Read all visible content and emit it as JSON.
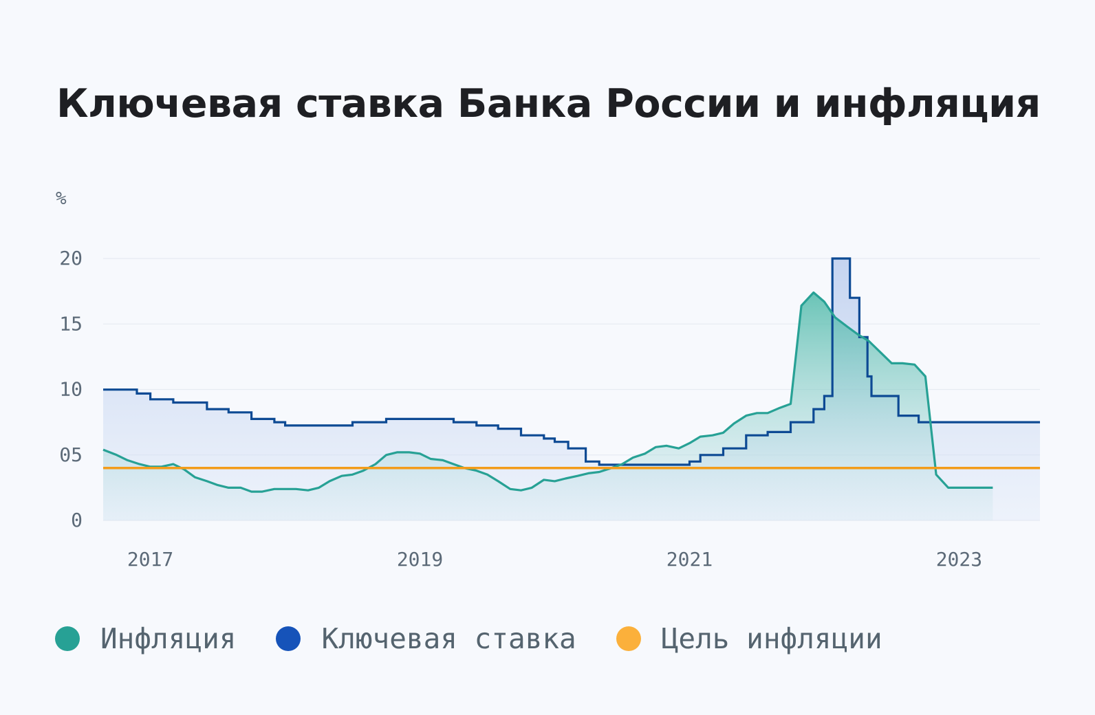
{
  "title": "Ключевая ставка Банка России и инфляция",
  "colors": {
    "inflation": "#27a195",
    "key_rate": "#0d4a94",
    "target": "#f39c1a",
    "legend_inflation": "#27a195",
    "legend_key_rate": "#1653b9",
    "legend_target": "#fbb03b"
  },
  "legend": [
    {
      "label": "Инфляция",
      "color_key": "legend_inflation"
    },
    {
      "label": "Ключевая ставка",
      "color_key": "legend_key_rate"
    },
    {
      "label": "Цель инфляции",
      "color_key": "legend_target"
    }
  ],
  "chart_data": {
    "type": "line",
    "title": "Ключевая ставка Банка России и инфляция",
    "ylabel": "%",
    "ylim": [
      0,
      20
    ],
    "yticks": [
      0,
      5,
      10,
      15,
      20
    ],
    "ytick_labels": [
      "0",
      "05",
      "10",
      "15",
      "20"
    ],
    "xlim": [
      2016.65,
      2023.6
    ],
    "xticks": [
      2017,
      2019,
      2021,
      2023
    ],
    "xtick_labels": [
      "2017",
      "2019",
      "2021",
      "2023"
    ],
    "grid": true,
    "legend_position": "bottom",
    "series": [
      {
        "name": "Инфляция",
        "type": "area",
        "x": [
          2016.65,
          2016.75,
          2016.83,
          2016.92,
          2017.0,
          2017.08,
          2017.17,
          2017.25,
          2017.33,
          2017.42,
          2017.5,
          2017.58,
          2017.67,
          2017.75,
          2017.83,
          2017.92,
          2018.0,
          2018.08,
          2018.17,
          2018.25,
          2018.33,
          2018.42,
          2018.5,
          2018.58,
          2018.67,
          2018.75,
          2018.83,
          2018.92,
          2019.0,
          2019.08,
          2019.17,
          2019.25,
          2019.33,
          2019.42,
          2019.5,
          2019.58,
          2019.67,
          2019.75,
          2019.83,
          2019.92,
          2020.0,
          2020.08,
          2020.17,
          2020.25,
          2020.33,
          2020.42,
          2020.5,
          2020.58,
          2020.67,
          2020.75,
          2020.83,
          2020.92,
          2021.0,
          2021.08,
          2021.17,
          2021.25,
          2021.33,
          2021.42,
          2021.5,
          2021.58,
          2021.67,
          2021.75,
          2021.83,
          2021.92,
          2022.0,
          2022.08,
          2022.17,
          2022.25,
          2022.33,
          2022.42,
          2022.5,
          2022.58,
          2022.67,
          2022.75,
          2022.83,
          2022.92,
          2023.0,
          2023.08,
          2023.17,
          2023.25
        ],
        "values": [
          5.4,
          5.0,
          4.6,
          4.3,
          4.1,
          4.1,
          4.3,
          3.9,
          3.3,
          3.0,
          2.7,
          2.5,
          2.5,
          2.2,
          2.2,
          2.4,
          2.4,
          2.4,
          2.3,
          2.5,
          3.0,
          3.4,
          3.5,
          3.8,
          4.3,
          5.0,
          5.2,
          5.2,
          5.1,
          4.7,
          4.6,
          4.3,
          4.0,
          3.8,
          3.5,
          3.0,
          2.4,
          2.3,
          2.5,
          3.1,
          3.0,
          3.2,
          3.4,
          3.6,
          3.7,
          4.0,
          4.3,
          4.8,
          5.1,
          5.6,
          5.7,
          5.5,
          5.9,
          6.4,
          6.5,
          6.7,
          7.4,
          8.0,
          8.2,
          8.2,
          8.6,
          8.9,
          16.4,
          17.4,
          16.7,
          15.5,
          14.8,
          14.2,
          13.7,
          12.8,
          12.0,
          12.0,
          11.9,
          11.0,
          3.5,
          2.5,
          2.5,
          2.5,
          2.5,
          2.5
        ]
      },
      {
        "name": "Ключевая ставка",
        "type": "step",
        "x": [
          2016.65,
          2016.9,
          2017.0,
          2017.17,
          2017.42,
          2017.58,
          2017.75,
          2017.92,
          2018.0,
          2018.5,
          2018.75,
          2019.25,
          2019.42,
          2019.58,
          2019.75,
          2019.92,
          2020.0,
          2020.1,
          2020.23,
          2020.33,
          2020.45,
          2020.55,
          2021.0,
          2021.08,
          2021.25,
          2021.42,
          2021.58,
          2021.75,
          2021.92,
          2022.0,
          2022.06,
          2022.19,
          2022.26,
          2022.32,
          2022.35,
          2022.45,
          2022.55,
          2022.7,
          2023.6
        ],
        "values": [
          9.99,
          9.69,
          9.25,
          9.0,
          8.5,
          8.25,
          7.75,
          7.5,
          7.25,
          7.5,
          7.75,
          7.5,
          7.25,
          7.0,
          6.5,
          6.25,
          6.0,
          5.5,
          4.5,
          4.25,
          4.25,
          4.25,
          4.5,
          5.0,
          5.5,
          6.5,
          6.75,
          7.5,
          8.5,
          9.5,
          20.0,
          17.0,
          14.0,
          11.0,
          9.5,
          9.5,
          8.0,
          7.5,
          7.5
        ]
      },
      {
        "name": "Цель инфляции",
        "type": "line",
        "x": [
          2016.65,
          2023.6
        ],
        "values": [
          4.0,
          4.0
        ]
      }
    ]
  }
}
